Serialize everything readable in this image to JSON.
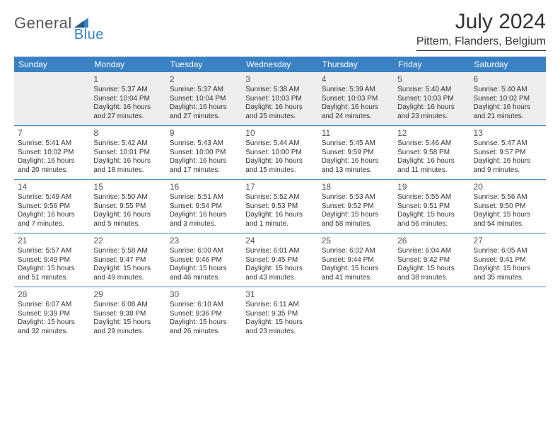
{
  "logo": {
    "part1": "General",
    "part2": "Blue"
  },
  "title": "July 2024",
  "location": "Pittem, Flanders, Belgium",
  "colors": {
    "brand_blue": "#3b82c4",
    "header_bg": "#3b82c4",
    "header_text": "#ffffff",
    "rule": "#3b82c4",
    "text": "#333333",
    "gray_band": "#eeeeee"
  },
  "typography": {
    "title_fontsize": 30,
    "location_fontsize": 16,
    "dayheader_fontsize": 12,
    "daynum_fontsize": 12,
    "body_fontsize": 10
  },
  "day_headers": [
    "Sunday",
    "Monday",
    "Tuesday",
    "Wednesday",
    "Thursday",
    "Friday",
    "Saturday"
  ],
  "weeks": [
    [
      null,
      {
        "n": "1",
        "sunrise": "Sunrise: 5:37 AM",
        "sunset": "Sunset: 10:04 PM",
        "daylight": "Daylight: 16 hours and 27 minutes."
      },
      {
        "n": "2",
        "sunrise": "Sunrise: 5:37 AM",
        "sunset": "Sunset: 10:04 PM",
        "daylight": "Daylight: 16 hours and 27 minutes."
      },
      {
        "n": "3",
        "sunrise": "Sunrise: 5:38 AM",
        "sunset": "Sunset: 10:03 PM",
        "daylight": "Daylight: 16 hours and 25 minutes."
      },
      {
        "n": "4",
        "sunrise": "Sunrise: 5:39 AM",
        "sunset": "Sunset: 10:03 PM",
        "daylight": "Daylight: 16 hours and 24 minutes."
      },
      {
        "n": "5",
        "sunrise": "Sunrise: 5:40 AM",
        "sunset": "Sunset: 10:03 PM",
        "daylight": "Daylight: 16 hours and 23 minutes."
      },
      {
        "n": "6",
        "sunrise": "Sunrise: 5:40 AM",
        "sunset": "Sunset: 10:02 PM",
        "daylight": "Daylight: 16 hours and 21 minutes."
      }
    ],
    [
      {
        "n": "7",
        "sunrise": "Sunrise: 5:41 AM",
        "sunset": "Sunset: 10:02 PM",
        "daylight": "Daylight: 16 hours and 20 minutes."
      },
      {
        "n": "8",
        "sunrise": "Sunrise: 5:42 AM",
        "sunset": "Sunset: 10:01 PM",
        "daylight": "Daylight: 16 hours and 18 minutes."
      },
      {
        "n": "9",
        "sunrise": "Sunrise: 5:43 AM",
        "sunset": "Sunset: 10:00 PM",
        "daylight": "Daylight: 16 hours and 17 minutes."
      },
      {
        "n": "10",
        "sunrise": "Sunrise: 5:44 AM",
        "sunset": "Sunset: 10:00 PM",
        "daylight": "Daylight: 16 hours and 15 minutes."
      },
      {
        "n": "11",
        "sunrise": "Sunrise: 5:45 AM",
        "sunset": "Sunset: 9:59 PM",
        "daylight": "Daylight: 16 hours and 13 minutes."
      },
      {
        "n": "12",
        "sunrise": "Sunrise: 5:46 AM",
        "sunset": "Sunset: 9:58 PM",
        "daylight": "Daylight: 16 hours and 11 minutes."
      },
      {
        "n": "13",
        "sunrise": "Sunrise: 5:47 AM",
        "sunset": "Sunset: 9:57 PM",
        "daylight": "Daylight: 16 hours and 9 minutes."
      }
    ],
    [
      {
        "n": "14",
        "sunrise": "Sunrise: 5:49 AM",
        "sunset": "Sunset: 9:56 PM",
        "daylight": "Daylight: 16 hours and 7 minutes."
      },
      {
        "n": "15",
        "sunrise": "Sunrise: 5:50 AM",
        "sunset": "Sunset: 9:55 PM",
        "daylight": "Daylight: 16 hours and 5 minutes."
      },
      {
        "n": "16",
        "sunrise": "Sunrise: 5:51 AM",
        "sunset": "Sunset: 9:54 PM",
        "daylight": "Daylight: 16 hours and 3 minutes."
      },
      {
        "n": "17",
        "sunrise": "Sunrise: 5:52 AM",
        "sunset": "Sunset: 9:53 PM",
        "daylight": "Daylight: 16 hours and 1 minute."
      },
      {
        "n": "18",
        "sunrise": "Sunrise: 5:53 AM",
        "sunset": "Sunset: 9:52 PM",
        "daylight": "Daylight: 15 hours and 58 minutes."
      },
      {
        "n": "19",
        "sunrise": "Sunrise: 5:55 AM",
        "sunset": "Sunset: 9:51 PM",
        "daylight": "Daylight: 15 hours and 56 minutes."
      },
      {
        "n": "20",
        "sunrise": "Sunrise: 5:56 AM",
        "sunset": "Sunset: 9:50 PM",
        "daylight": "Daylight: 15 hours and 54 minutes."
      }
    ],
    [
      {
        "n": "21",
        "sunrise": "Sunrise: 5:57 AM",
        "sunset": "Sunset: 9:49 PM",
        "daylight": "Daylight: 15 hours and 51 minutes."
      },
      {
        "n": "22",
        "sunrise": "Sunrise: 5:58 AM",
        "sunset": "Sunset: 9:47 PM",
        "daylight": "Daylight: 15 hours and 49 minutes."
      },
      {
        "n": "23",
        "sunrise": "Sunrise: 6:00 AM",
        "sunset": "Sunset: 9:46 PM",
        "daylight": "Daylight: 15 hours and 46 minutes."
      },
      {
        "n": "24",
        "sunrise": "Sunrise: 6:01 AM",
        "sunset": "Sunset: 9:45 PM",
        "daylight": "Daylight: 15 hours and 43 minutes."
      },
      {
        "n": "25",
        "sunrise": "Sunrise: 6:02 AM",
        "sunset": "Sunset: 9:44 PM",
        "daylight": "Daylight: 15 hours and 41 minutes."
      },
      {
        "n": "26",
        "sunrise": "Sunrise: 6:04 AM",
        "sunset": "Sunset: 9:42 PM",
        "daylight": "Daylight: 15 hours and 38 minutes."
      },
      {
        "n": "27",
        "sunrise": "Sunrise: 6:05 AM",
        "sunset": "Sunset: 9:41 PM",
        "daylight": "Daylight: 15 hours and 35 minutes."
      }
    ],
    [
      {
        "n": "28",
        "sunrise": "Sunrise: 6:07 AM",
        "sunset": "Sunset: 9:39 PM",
        "daylight": "Daylight: 15 hours and 32 minutes."
      },
      {
        "n": "29",
        "sunrise": "Sunrise: 6:08 AM",
        "sunset": "Sunset: 9:38 PM",
        "daylight": "Daylight: 15 hours and 29 minutes."
      },
      {
        "n": "30",
        "sunrise": "Sunrise: 6:10 AM",
        "sunset": "Sunset: 9:36 PM",
        "daylight": "Daylight: 15 hours and 26 minutes."
      },
      {
        "n": "31",
        "sunrise": "Sunrise: 6:11 AM",
        "sunset": "Sunset: 9:35 PM",
        "daylight": "Daylight: 15 hours and 23 minutes."
      },
      null,
      null,
      null
    ]
  ]
}
